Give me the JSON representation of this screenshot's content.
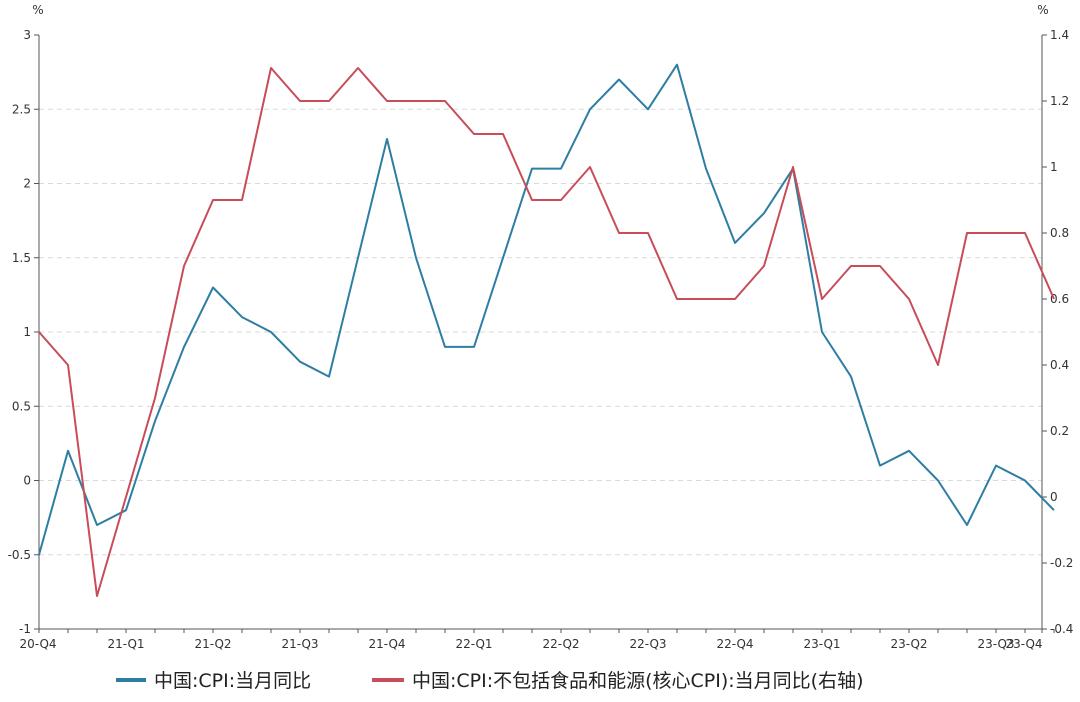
{
  "chart_data": {
    "type": "line",
    "left_unit": "%",
    "right_unit": "%",
    "y_left_range": [
      -1,
      3
    ],
    "y_right_range": [
      -0.4,
      1.4
    ],
    "y_left_ticks": [
      "3",
      "2.5",
      "2",
      "1.5",
      "1",
      "0.5",
      "0",
      "-0.5",
      "-1"
    ],
    "y_right_ticks": [
      "1.4",
      "1.2",
      "1",
      "0.8",
      "0.6",
      "0.4",
      "0.2",
      "0",
      "-0.2",
      "-0.4"
    ],
    "x_tick_labels": [
      "20-Q4",
      "21-Q1",
      "21-Q2",
      "21-Q3",
      "21-Q4",
      "22-Q1",
      "22-Q2",
      "22-Q3",
      "22-Q4",
      "23-Q1",
      "23-Q2",
      "23-Q3",
      "23-Q4"
    ],
    "grid": true,
    "legend_position": "bottom",
    "series": [
      {
        "name": "中国:CPI:当月同比",
        "axis": "left",
        "color": "#2e7ea3",
        "values": [
          -0.5,
          0.2,
          -0.3,
          -0.2,
          0.4,
          0.9,
          1.3,
          1.1,
          1.0,
          0.8,
          0.7,
          1.5,
          2.3,
          1.5,
          0.9,
          0.9,
          1.5,
          2.1,
          2.1,
          2.5,
          2.7,
          2.5,
          2.8,
          2.1,
          1.6,
          1.8,
          2.1,
          1.0,
          0.7,
          0.1,
          0.2,
          0.0,
          -0.3,
          0.1,
          0.0,
          -0.2
        ]
      },
      {
        "name": "中国:CPI:不包括食品和能源(核心CPI):当月同比(右轴)",
        "axis": "right",
        "color": "#c84c5a",
        "values": [
          0.5,
          0.4,
          -0.3,
          0.0,
          0.3,
          0.7,
          0.9,
          0.9,
          1.3,
          1.2,
          1.2,
          1.3,
          1.2,
          1.2,
          1.2,
          1.1,
          1.1,
          0.9,
          0.9,
          1.0,
          0.8,
          0.8,
          0.6,
          0.6,
          0.6,
          0.7,
          1.0,
          0.6,
          0.7,
          0.7,
          0.6,
          0.4,
          0.8,
          0.8,
          0.8,
          0.6
        ]
      }
    ]
  }
}
